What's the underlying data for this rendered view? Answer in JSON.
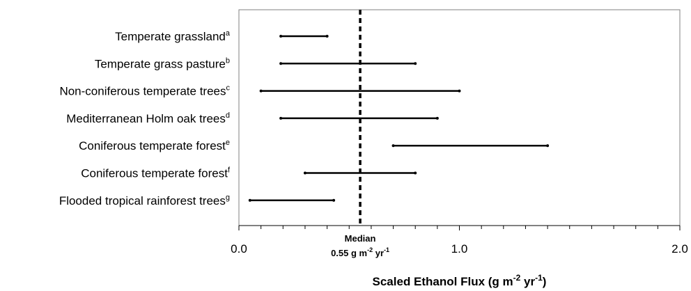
{
  "chart_data": {
    "type": "range",
    "categories": [
      {
        "label": "Temperate grassland",
        "sup": "a"
      },
      {
        "label": "Temperate grass pasture",
        "sup": "b"
      },
      {
        "label": "Non-coniferous temperate trees",
        "sup": "c"
      },
      {
        "label": "Mediterranean Holm oak trees",
        "sup": "d"
      },
      {
        "label": "Coniferous temperate forest",
        "sup": "e"
      },
      {
        "label": "Coniferous temperate forest",
        "sup": "f"
      },
      {
        "label": "Flooded tropical rainforest trees",
        "sup": "g"
      }
    ],
    "ranges": [
      [
        0.19,
        0.4
      ],
      [
        0.19,
        0.8
      ],
      [
        0.1,
        1.0
      ],
      [
        0.19,
        0.9
      ],
      [
        0.7,
        1.4
      ],
      [
        0.3,
        0.8
      ],
      [
        0.05,
        0.43
      ]
    ],
    "xlim": [
      0.0,
      2.0
    ],
    "xticks": [
      {
        "value": 0.0,
        "label": "0.0"
      },
      {
        "value": 1.0,
        "label": "1.0"
      },
      {
        "value": 2.0,
        "label": "2.0"
      }
    ],
    "minor_tick_step": 0.1,
    "median": {
      "value": 0.55,
      "title": "Median",
      "value_text": "0.55 g m",
      "exp1": "-2",
      "unit2": " yr",
      "exp2": "-1"
    },
    "xlabel": {
      "text": "Scaled Ethanol Flux (g m",
      "exp1": "-2",
      "unit2": " yr",
      "exp2": "-1",
      "close": ")"
    },
    "grid": false,
    "legend": "none",
    "colors": {
      "line": "#000000",
      "frame": "#808080",
      "axis": "#000000"
    }
  }
}
